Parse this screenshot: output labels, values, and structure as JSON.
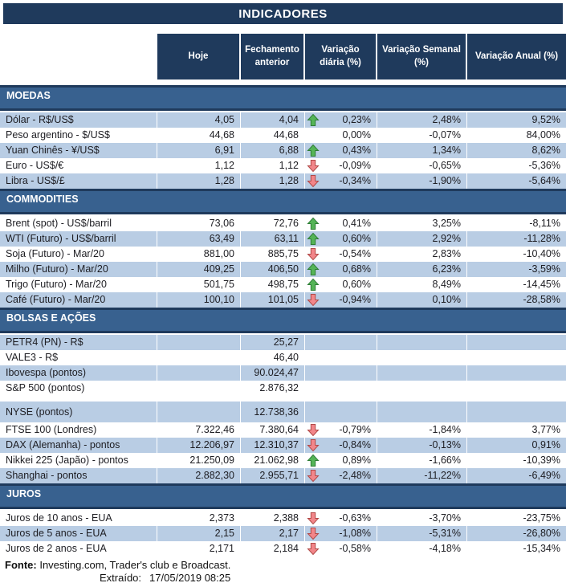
{
  "title": "INDICADORES",
  "columns": [
    "Hoje",
    "Fechamento anterior",
    "Variação diária (%)",
    "Variação Semanal (%)",
    "Variação Anual (%)"
  ],
  "colors": {
    "navy": "#1f3a5c",
    "section_blue": "#38618f",
    "row_light": "#b9cde4",
    "arrow_up_fill": "#55b457",
    "arrow_up_stroke": "#2e7d36",
    "arrow_down_fill": "#f2868a",
    "arrow_down_stroke": "#b14a48"
  },
  "sections": [
    {
      "name": "MOEDAS",
      "rows": [
        {
          "label": "Dólar - R$/US$",
          "hoje": "4,05",
          "fechamento": "4,04",
          "arrow": "up",
          "var_diaria": "0,23%",
          "var_semanal": "2,48%",
          "var_anual": "9,52%"
        },
        {
          "label": "Peso argentino - $/US$",
          "hoje": "44,68",
          "fechamento": "44,68",
          "arrow": "",
          "var_diaria": "0,00%",
          "var_semanal": "-0,07%",
          "var_anual": "84,00%"
        },
        {
          "label": "Yuan Chinês - ¥/US$",
          "hoje": "6,91",
          "fechamento": "6,88",
          "arrow": "up",
          "var_diaria": "0,43%",
          "var_semanal": "1,34%",
          "var_anual": "8,62%"
        },
        {
          "label": "Euro - US$/€",
          "hoje": "1,12",
          "fechamento": "1,12",
          "arrow": "down",
          "var_diaria": "-0,09%",
          "var_semanal": "-0,65%",
          "var_anual": "-5,36%"
        },
        {
          "label": "Libra - US$/£",
          "hoje": "1,28",
          "fechamento": "1,28",
          "arrow": "down",
          "var_diaria": "-0,34%",
          "var_semanal": "-1,90%",
          "var_anual": "-5,64%"
        }
      ]
    },
    {
      "name": "COMMODITIES",
      "rows": [
        {
          "label": "Brent (spot) - US$/barril",
          "hoje": "73,06",
          "fechamento": "72,76",
          "arrow": "up",
          "var_diaria": "0,41%",
          "var_semanal": "3,25%",
          "var_anual": "-8,11%"
        },
        {
          "label": "WTI (Futuro) - US$/barril",
          "hoje": "63,49",
          "fechamento": "63,11",
          "arrow": "up",
          "var_diaria": "0,60%",
          "var_semanal": "2,92%",
          "var_anual": "-11,28%"
        },
        {
          "label": "Soja (Futuro) - Mar/20",
          "hoje": "881,00",
          "fechamento": "885,75",
          "arrow": "down",
          "var_diaria": "-0,54%",
          "var_semanal": "2,83%",
          "var_anual": "-10,40%"
        },
        {
          "label": "Milho (Futuro) - Mar/20",
          "hoje": "409,25",
          "fechamento": "406,50",
          "arrow": "up",
          "var_diaria": "0,68%",
          "var_semanal": "6,23%",
          "var_anual": "-3,59%"
        },
        {
          "label": "Trigo (Futuro) - Mar/20",
          "hoje": "501,75",
          "fechamento": "498,75",
          "arrow": "up",
          "var_diaria": "0,60%",
          "var_semanal": "8,49%",
          "var_anual": "-14,45%"
        },
        {
          "label": "Café (Futuro) - Mar/20",
          "hoje": "100,10",
          "fechamento": "101,05",
          "arrow": "down",
          "var_diaria": "-0,94%",
          "var_semanal": "0,10%",
          "var_anual": "-28,58%"
        }
      ]
    },
    {
      "name": "BOLSAS E AÇÕES",
      "rows": [
        {
          "label": "PETR4 (PN) - R$",
          "hoje": "",
          "fechamento": "25,27",
          "arrow": "",
          "var_diaria": "",
          "var_semanal": "",
          "var_anual": ""
        },
        {
          "label": "VALE3 - R$",
          "hoje": "",
          "fechamento": "46,40",
          "arrow": "",
          "var_diaria": "",
          "var_semanal": "",
          "var_anual": ""
        },
        {
          "label": "Ibovespa (pontos)",
          "hoje": "",
          "fechamento": "90.024,47",
          "arrow": "",
          "var_diaria": "",
          "var_semanal": "",
          "var_anual": ""
        },
        {
          "label": "S&P 500 (pontos)",
          "hoje": "",
          "fechamento": "2.876,32",
          "arrow": "",
          "var_diaria": "",
          "var_semanal": "",
          "var_anual": ""
        },
        {
          "label": "NYSE (pontos)",
          "hoje": "",
          "fechamento": "12.738,36",
          "arrow": "",
          "var_diaria": "",
          "var_semanal": "",
          "var_anual": ""
        },
        {
          "label": "FTSE 100 (Londres)",
          "hoje": "7.322,46",
          "fechamento": "7.380,64",
          "arrow": "down",
          "var_diaria": "-0,79%",
          "var_semanal": "-1,84%",
          "var_anual": "3,77%"
        },
        {
          "label": "DAX (Alemanha) - pontos",
          "hoje": "12.206,97",
          "fechamento": "12.310,37",
          "arrow": "down",
          "var_diaria": "-0,84%",
          "var_semanal": "-0,13%",
          "var_anual": "0,91%"
        },
        {
          "label": "Nikkei 225 (Japão) - pontos",
          "hoje": "21.250,09",
          "fechamento": "21.062,98",
          "arrow": "up",
          "var_diaria": "0,89%",
          "var_semanal": "-1,66%",
          "var_anual": "-10,39%"
        },
        {
          "label": "Shanghai - pontos",
          "hoje": "2.882,30",
          "fechamento": "2.955,71",
          "arrow": "down",
          "var_diaria": "-2,48%",
          "var_semanal": "-11,22%",
          "var_anual": "-6,49%"
        }
      ]
    },
    {
      "name": "JUROS",
      "rows": [
        {
          "label": "Juros de 10 anos - EUA",
          "hoje": "2,373",
          "fechamento": "2,388",
          "arrow": "down",
          "var_diaria": "-0,63%",
          "var_semanal": "-3,70%",
          "var_anual": "-23,75%"
        },
        {
          "label": "Juros de 5 anos - EUA",
          "hoje": "2,15",
          "fechamento": "2,17",
          "arrow": "down",
          "var_diaria": "-1,08%",
          "var_semanal": "-5,31%",
          "var_anual": "-26,80%"
        },
        {
          "label": "Juros de 2 anos - EUA",
          "hoje": "2,171",
          "fechamento": "2,184",
          "arrow": "down",
          "var_diaria": "-0,58%",
          "var_semanal": "-4,18%",
          "var_anual": "-15,34%"
        }
      ]
    }
  ],
  "footer": {
    "fonte_label": "Fonte:",
    "fonte_text": " Investing.com, Trader's club e Broadcast.",
    "extraido_label": "Extraído:",
    "extraido_value": "17/05/2019 08:25"
  }
}
